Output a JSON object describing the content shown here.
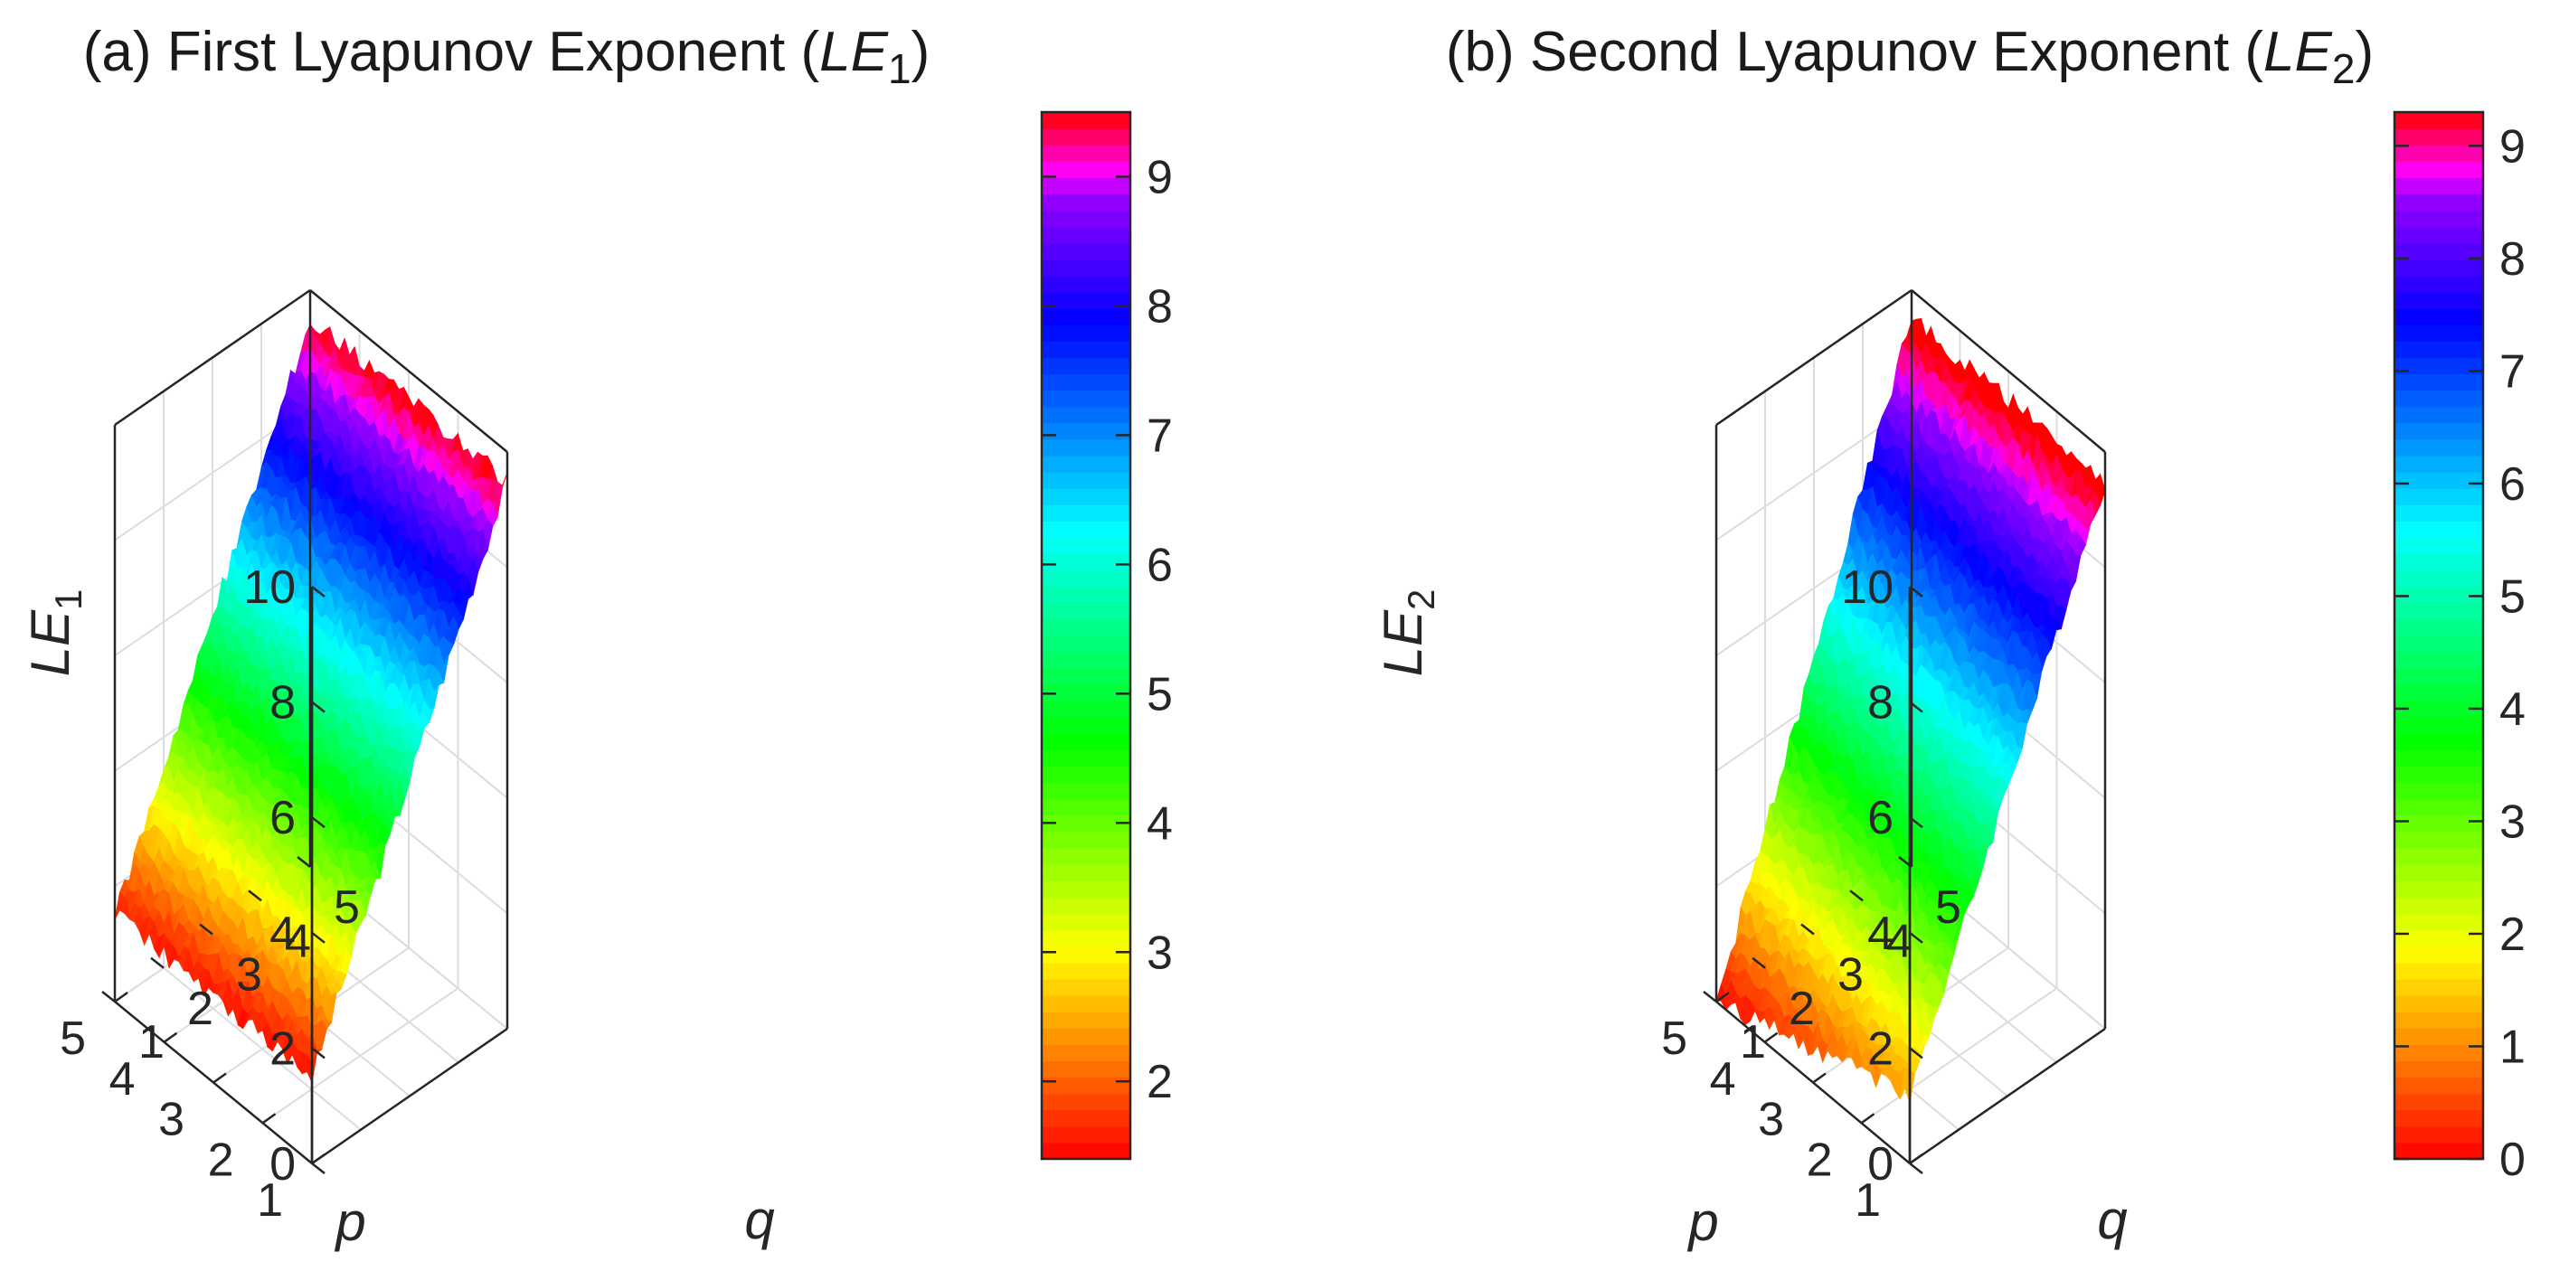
{
  "chart_data": [
    {
      "type": "surface",
      "title": {
        "prefix": "(a) First Lyapunov Exponent (",
        "var": "LE",
        "sub": "1",
        "suffix": ")"
      },
      "zlabel": {
        "var": "LE",
        "sub": "1"
      },
      "xlabel": "p",
      "ylabel": "q",
      "x_ticks": [
        "1",
        "2",
        "3",
        "4",
        "5"
      ],
      "y_ticks": [
        "1",
        "2",
        "3",
        "4",
        "5"
      ],
      "z_ticks": [
        "0",
        "2",
        "4",
        "6",
        "8",
        "10"
      ],
      "xlim": [
        1,
        5
      ],
      "ylim": [
        1,
        5
      ],
      "zlim": [
        0,
        10
      ],
      "grid": true,
      "colormap": "hsv (red-orange-yellow-green-cyan-blue-magenta-red)",
      "colorbar_ticks": [
        "2",
        "3",
        "4",
        "5",
        "6",
        "7",
        "8",
        "9"
      ],
      "colorbar_range": [
        1.4,
        9.5
      ],
      "corners": {
        "p1_q1": 1.5,
        "p5_q1": 1.5,
        "p1_q5": 9.5,
        "p5_q5": 9.5
      },
      "z_model": "z ≈ 1.5 + 2.0·(q − 1), nearly independent of p, with small noise"
    },
    {
      "type": "surface",
      "title": {
        "prefix": "(b) Second Lyapunov Exponent (",
        "var": "LE",
        "sub": "2",
        "suffix": ")"
      },
      "zlabel": {
        "var": "LE",
        "sub": "2"
      },
      "xlabel": "p",
      "ylabel": "q",
      "x_ticks": [
        "1",
        "2",
        "3",
        "4",
        "5"
      ],
      "y_ticks": [
        "1",
        "2",
        "3",
        "4",
        "5"
      ],
      "z_ticks": [
        "0",
        "2",
        "4",
        "6",
        "8",
        "10"
      ],
      "xlim": [
        1,
        5
      ],
      "ylim": [
        1,
        5
      ],
      "zlim": [
        0,
        10
      ],
      "grid": true,
      "colormap": "hsv (red-orange-yellow-green-cyan-blue-magenta-red)",
      "colorbar_ticks": [
        "0",
        "1",
        "2",
        "3",
        "4",
        "5",
        "6",
        "7",
        "8",
        "9"
      ],
      "colorbar_range": [
        0,
        9.3
      ],
      "corners": {
        "p1_q1": 1.2,
        "p5_q1": 0.0,
        "p1_q5": 9.5,
        "p5_q5": 9.5
      },
      "z_model": "z ≈ 1.2 + 2.07·(q − 1), dropping toward 0 near p = 5, q = 1, with small noise"
    }
  ]
}
